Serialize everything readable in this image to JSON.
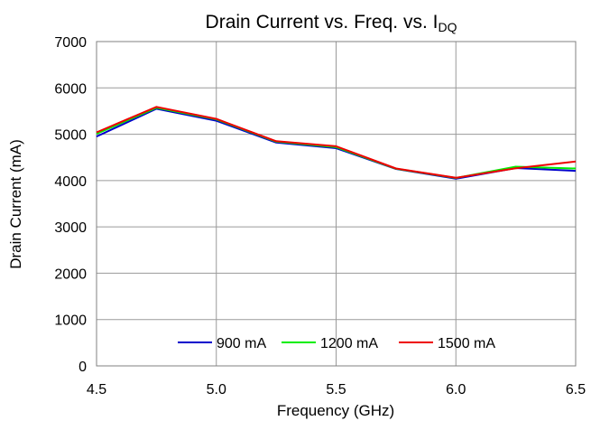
{
  "chart_data": {
    "type": "line",
    "title": "Drain Current vs. Freq. vs. I",
    "title_subscript": "DQ",
    "xlabel": "Frequency (GHz)",
    "ylabel": "Drain Current (mA)",
    "xlim": [
      4.5,
      6.5
    ],
    "ylim": [
      0,
      7000
    ],
    "x_ticks": [
      "4.5",
      "5.0",
      "5.5",
      "6.0",
      "6.5"
    ],
    "y_ticks": [
      "0",
      "1000",
      "2000",
      "3000",
      "4000",
      "5000",
      "6000",
      "7000"
    ],
    "grid": true,
    "legend_position": "bottom-inside",
    "x": [
      4.5,
      4.75,
      5.0,
      5.25,
      5.5,
      5.75,
      6.0,
      6.25,
      6.5
    ],
    "series": [
      {
        "name": "900 mA",
        "color": "#0000CC",
        "values": [
          4950,
          5550,
          5290,
          4820,
          4700,
          4250,
          4040,
          4270,
          4210
        ]
      },
      {
        "name": "1200 mA",
        "color": "#00EE00",
        "values": [
          5010,
          5570,
          5320,
          4840,
          4720,
          4255,
          4055,
          4300,
          4260
        ]
      },
      {
        "name": "1500 mA",
        "color": "#EE0000",
        "values": [
          5040,
          5590,
          5330,
          4850,
          4740,
          4260,
          4060,
          4265,
          4410
        ]
      }
    ]
  }
}
